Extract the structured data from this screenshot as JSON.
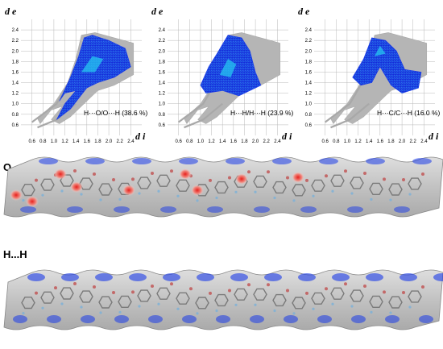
{
  "plots": [
    {
      "caption": "H···O/O···H  (38.6 %)",
      "shape": "oo"
    },
    {
      "caption": "H···H/H···H  (23.9 %)",
      "shape": "hh"
    },
    {
      "caption": "H···C/C···H  (16.0 %)",
      "shape": "ch"
    }
  ],
  "axis": {
    "y_label": "d e",
    "x_label": "d i",
    "y_ticks": [
      "0.6",
      "0.8",
      "1.0",
      "1.2",
      "1.4",
      "1.6",
      "1.8",
      "2.0",
      "2.2",
      "2.4"
    ],
    "x_ticks": [
      "0.6",
      "0.8",
      "1.0",
      "1.2",
      "1.4",
      "1.6",
      "1.8",
      "2.0",
      "2.2",
      "2.4"
    ]
  },
  "surfaces": [
    {
      "label": "O...H",
      "kind": "oh"
    },
    {
      "label": "H...H",
      "kind": "hh"
    }
  ],
  "colors": {
    "grid": "#b8b8b8",
    "gray_fingerprint": "#b5b5b5",
    "blue": "#1a3ae8",
    "cyan": "#25c6f0",
    "red_spot": "#e03030",
    "surface_gray": "#c8c8c8"
  }
}
